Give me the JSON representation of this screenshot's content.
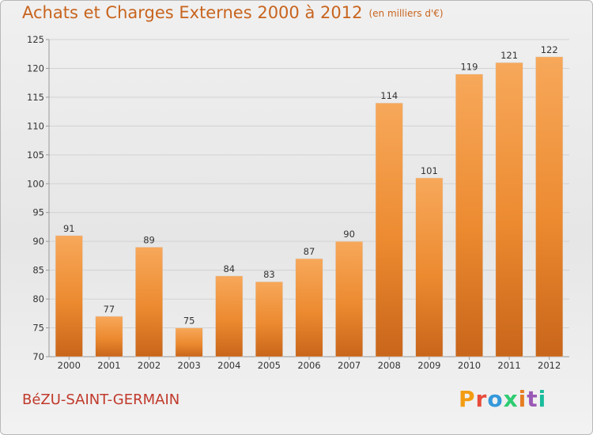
{
  "title": "Achats et Charges Externes 2000 à 2012",
  "unit_label": "(en milliers d'€)",
  "location": "BéZU-SAINT-GERMAIN",
  "brand": "Proxiti",
  "colors": {
    "bar": "#f0913a",
    "bar_dark": "#c8651a",
    "title": "#c8641e",
    "location": "#c0392b"
  },
  "chart_data": {
    "type": "bar",
    "categories": [
      "2000",
      "2001",
      "2002",
      "2003",
      "2004",
      "2005",
      "2006",
      "2007",
      "2008",
      "2009",
      "2010",
      "2011",
      "2012"
    ],
    "values": [
      91,
      77,
      89,
      75,
      84,
      83,
      87,
      90,
      114,
      101,
      119,
      121,
      122
    ],
    "ylim": [
      70,
      125
    ],
    "yticks": [
      70,
      75,
      80,
      85,
      90,
      95,
      100,
      105,
      110,
      115,
      120,
      125
    ],
    "grid": true,
    "data_labels": true
  }
}
